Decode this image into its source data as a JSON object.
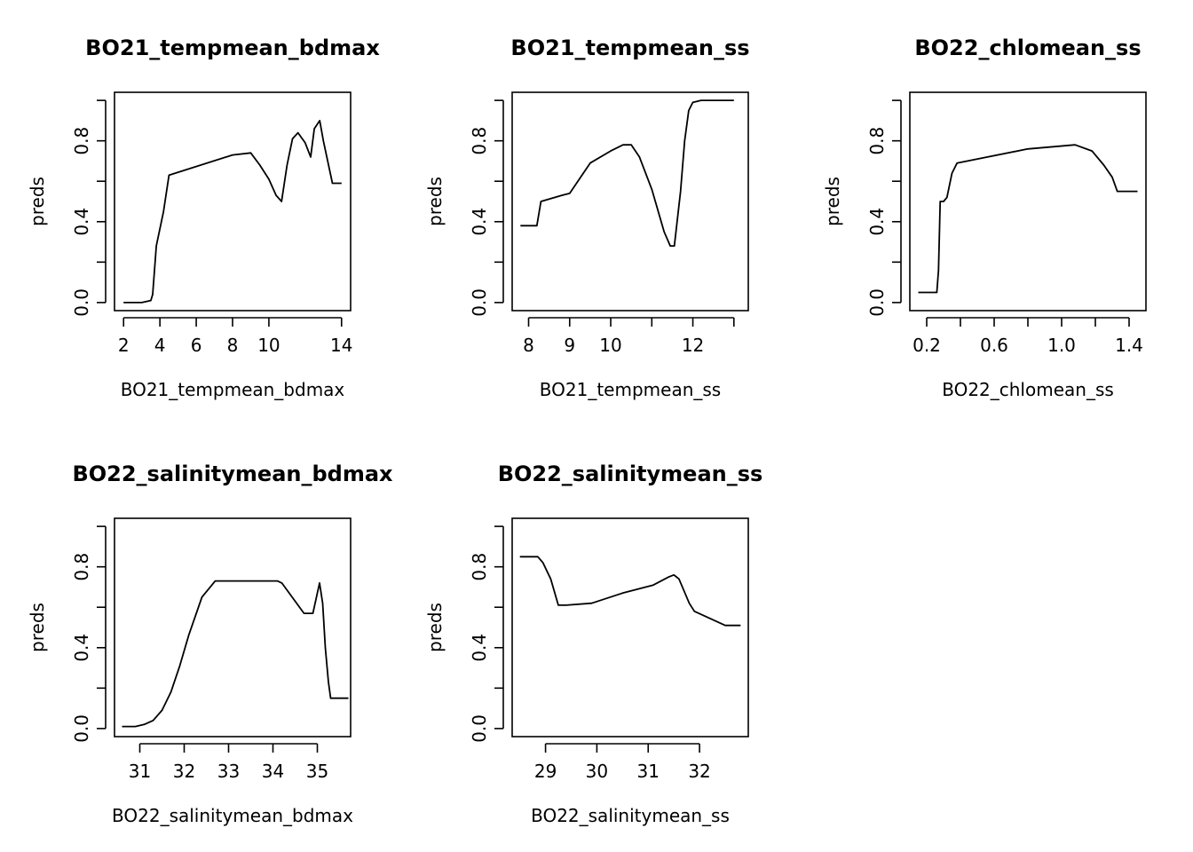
{
  "chart_data": [
    {
      "type": "line",
      "title": "BO21_tempmean_bdmax",
      "xlabel": "BO21_tempmean_bdmax",
      "ylabel": "preds",
      "xlim": [
        1.5,
        14.5
      ],
      "ylim": [
        -0.04,
        1.04
      ],
      "xticks": [
        2,
        4,
        6,
        8,
        10,
        14
      ],
      "yticks": [
        0.0,
        0.2,
        0.4,
        0.6,
        0.8,
        1.0
      ],
      "ytick_labels": [
        "0.0",
        "",
        "0.4",
        "",
        "0.8",
        ""
      ],
      "series": [
        {
          "x": [
            2.0,
            3.0,
            3.5,
            3.6,
            3.8,
            4.2,
            4.5,
            8.0,
            9.0,
            9.5,
            10.0,
            10.4,
            10.7,
            11.0,
            11.3,
            11.6,
            12.0,
            12.3,
            12.5,
            12.8,
            13.0,
            13.5,
            14.0
          ],
          "y": [
            0.0,
            0.0,
            0.01,
            0.04,
            0.28,
            0.45,
            0.63,
            0.73,
            0.74,
            0.68,
            0.61,
            0.53,
            0.5,
            0.68,
            0.81,
            0.84,
            0.79,
            0.72,
            0.86,
            0.9,
            0.8,
            0.59,
            0.59
          ]
        }
      ]
    },
    {
      "type": "line",
      "title": "BO21_tempmean_ss",
      "xlabel": "BO21_tempmean_ss",
      "ylabel": "preds",
      "xlim": [
        7.6,
        13.35
      ],
      "ylim": [
        -0.04,
        1.04
      ],
      "xticks": [
        8,
        9,
        10,
        11,
        12,
        13
      ],
      "xtick_labels": [
        "8",
        "9",
        "10",
        "",
        "12",
        ""
      ],
      "yticks": [
        0.0,
        0.2,
        0.4,
        0.6,
        0.8,
        1.0
      ],
      "ytick_labels": [
        "0.0",
        "",
        "0.4",
        "",
        "0.8",
        ""
      ],
      "series": [
        {
          "x": [
            7.8,
            8.2,
            8.3,
            8.8,
            9.0,
            9.2,
            9.5,
            10.0,
            10.3,
            10.5,
            10.7,
            11.0,
            11.3,
            11.45,
            11.55,
            11.7,
            11.8,
            11.9,
            12.0,
            12.2,
            12.5,
            13.0
          ],
          "y": [
            0.38,
            0.38,
            0.5,
            0.53,
            0.54,
            0.6,
            0.69,
            0.75,
            0.78,
            0.78,
            0.72,
            0.56,
            0.35,
            0.28,
            0.28,
            0.55,
            0.8,
            0.95,
            0.99,
            1.0,
            1.0,
            1.0
          ]
        }
      ]
    },
    {
      "type": "line",
      "title": "BO22_chlomean_ss",
      "xlabel": "BO22_chlomean_ss",
      "ylabel": "preds",
      "xlim": [
        0.1,
        1.5
      ],
      "ylim": [
        -0.04,
        1.04
      ],
      "xticks": [
        0.2,
        0.4,
        0.6,
        0.8,
        1.0,
        1.2,
        1.4
      ],
      "xtick_labels": [
        "0.2",
        "",
        "0.6",
        "",
        "1.0",
        "",
        "1.4"
      ],
      "yticks": [
        0.0,
        0.2,
        0.4,
        0.6,
        0.8,
        1.0
      ],
      "ytick_labels": [
        "0.0",
        "",
        "0.4",
        "",
        "0.8",
        ""
      ],
      "series": [
        {
          "x": [
            0.15,
            0.26,
            0.27,
            0.28,
            0.3,
            0.32,
            0.35,
            0.38,
            0.8,
            1.08,
            1.18,
            1.25,
            1.3,
            1.33,
            1.45
          ],
          "y": [
            0.05,
            0.05,
            0.16,
            0.5,
            0.5,
            0.52,
            0.64,
            0.69,
            0.76,
            0.78,
            0.75,
            0.68,
            0.62,
            0.55,
            0.55
          ]
        }
      ]
    },
    {
      "type": "line",
      "title": "BO22_salinitymean_bdmax",
      "xlabel": "BO22_salinitymean_bdmax",
      "ylabel": "preds",
      "xlim": [
        30.43,
        35.75
      ],
      "ylim": [
        -0.04,
        1.04
      ],
      "xticks": [
        31,
        32,
        33,
        34,
        35
      ],
      "yticks": [
        0.0,
        0.2,
        0.4,
        0.6,
        0.8,
        1.0
      ],
      "ytick_labels": [
        "0.0",
        "",
        "0.4",
        "",
        "0.8",
        ""
      ],
      "series": [
        {
          "x": [
            30.6,
            30.9,
            31.1,
            31.3,
            31.5,
            31.7,
            31.9,
            32.1,
            32.4,
            32.7,
            34.1,
            34.2,
            34.7,
            34.9,
            35.05,
            35.12,
            35.18,
            35.25,
            35.3,
            35.7
          ],
          "y": [
            0.01,
            0.01,
            0.02,
            0.04,
            0.09,
            0.18,
            0.31,
            0.46,
            0.65,
            0.73,
            0.73,
            0.72,
            0.57,
            0.57,
            0.72,
            0.62,
            0.4,
            0.23,
            0.15,
            0.15
          ]
        }
      ]
    },
    {
      "type": "line",
      "title": "BO22_salinitymean_ss",
      "xlabel": "BO22_salinitymean_ss",
      "ylabel": "preds",
      "xlim": [
        28.35,
        32.95
      ],
      "ylim": [
        -0.04,
        1.04
      ],
      "xticks": [
        29,
        30,
        31,
        32
      ],
      "yticks": [
        0.0,
        0.2,
        0.4,
        0.6,
        0.8,
        1.0
      ],
      "ytick_labels": [
        "0.0",
        "",
        "0.4",
        "",
        "0.8",
        ""
      ],
      "series": [
        {
          "x": [
            28.5,
            28.85,
            28.95,
            29.1,
            29.25,
            29.4,
            29.9,
            30.5,
            31.1,
            31.4,
            31.5,
            31.6,
            31.8,
            31.9,
            32.5,
            32.8
          ],
          "y": [
            0.85,
            0.85,
            0.82,
            0.74,
            0.61,
            0.61,
            0.62,
            0.67,
            0.71,
            0.75,
            0.76,
            0.74,
            0.62,
            0.58,
            0.51,
            0.51
          ]
        }
      ]
    }
  ]
}
